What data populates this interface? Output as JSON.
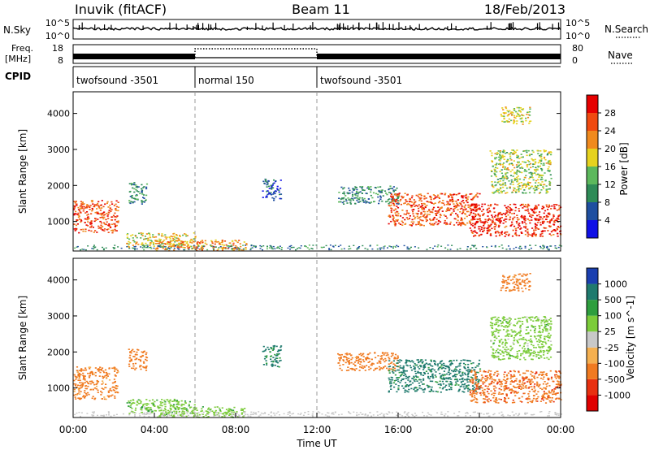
{
  "header": {
    "station": "Inuvik (fitACF)",
    "beam": "Beam 11",
    "date": "18/Feb/2013"
  },
  "top_panel": {
    "left_label": "N.Sky",
    "right_label": "N.Search",
    "left_ticks": [
      "10^5",
      "10^0"
    ],
    "right_ticks": [
      "10^5",
      "10^0"
    ]
  },
  "freq_panel": {
    "left_label_1": "Freq.",
    "left_label_2": "[MHz]",
    "right_label": "Nave",
    "left_ticks": [
      "18",
      "8"
    ],
    "right_ticks": [
      "80",
      "0"
    ]
  },
  "cpid": {
    "label": "CPID",
    "segments": [
      {
        "name": "twofsound -3501",
        "start_hour": 0,
        "end_hour": 6
      },
      {
        "name": "normal 150",
        "start_hour": 6,
        "end_hour": 12
      },
      {
        "name": "twofsound -3501",
        "start_hour": 12,
        "end_hour": 24
      }
    ]
  },
  "xaxis": {
    "title": "Time UT",
    "ticks": [
      "00:00",
      "04:00",
      "08:00",
      "12:00",
      "16:00",
      "20:00",
      "00:00"
    ]
  },
  "power_panel": {
    "ylabel": "Slant Range [km]",
    "yticks": [
      "1000",
      "2000",
      "3000",
      "4000"
    ],
    "colorbar_title": "Power [dB]",
    "colorbar_ticks": [
      "4",
      "8",
      "12",
      "16",
      "20",
      "24",
      "28"
    ],
    "colors": [
      "#1010e6",
      "#1f4fa0",
      "#2e8b57",
      "#5cb85c",
      "#e6d21e",
      "#f08a1e",
      "#f04a10",
      "#e60000"
    ]
  },
  "velocity_panel": {
    "ylabel": "Slant Range [km]",
    "yticks": [
      "1000",
      "2000",
      "3000",
      "4000"
    ],
    "colorbar_title": "Velocity [m s^-1]",
    "colorbar_ticks": [
      "1000",
      "500",
      "100",
      "25",
      "-25",
      "-100",
      "-500",
      "-1000"
    ],
    "colors": [
      "#1a3fb0",
      "#1f7a6e",
      "#2e9e3e",
      "#7ccc3a",
      "#c8c8c8",
      "#f5b050",
      "#f07a20",
      "#e83010",
      "#e00000"
    ]
  },
  "chart_data": {
    "type": "heatmap",
    "title": "Inuvik (fitACF) Beam 11 18/Feb/2013",
    "xlabel": "Time UT",
    "ylabel": "Slant Range [km]",
    "xlim": [
      0,
      24
    ],
    "ylim": [
      180,
      4600
    ],
    "regions": [
      {
        "t0": 0.0,
        "t1": 2.2,
        "r0": 700,
        "r1": 1600,
        "power": 26,
        "velocity": -150
      },
      {
        "t0": 2.7,
        "t1": 3.6,
        "r0": 1500,
        "r1": 2100,
        "power": 10,
        "velocity": -300
      },
      {
        "t0": 2.6,
        "t1": 6.0,
        "r0": 300,
        "r1": 700,
        "power": 18,
        "velocity": 80
      },
      {
        "t0": 4.0,
        "t1": 8.5,
        "r0": 200,
        "r1": 500,
        "power": 22,
        "velocity": 60
      },
      {
        "t0": 9.3,
        "t1": 10.2,
        "r0": 1600,
        "r1": 2200,
        "power": 6,
        "velocity": 700
      },
      {
        "t0": 13.0,
        "t1": 16.0,
        "r0": 1500,
        "r1": 2000,
        "power": 10,
        "velocity": -200
      },
      {
        "t0": 15.5,
        "t1": 20.0,
        "r0": 900,
        "r1": 1800,
        "power": 26,
        "velocity": 700
      },
      {
        "t0": 19.5,
        "t1": 24.0,
        "r0": 600,
        "r1": 1500,
        "power": 28,
        "velocity": -400
      },
      {
        "t0": 20.5,
        "t1": 23.5,
        "r0": 1800,
        "r1": 3000,
        "power": 16,
        "velocity": 60
      },
      {
        "t0": 21.0,
        "t1": 22.5,
        "r0": 3700,
        "r1": 4200,
        "power": 18,
        "velocity": -150
      }
    ]
  }
}
